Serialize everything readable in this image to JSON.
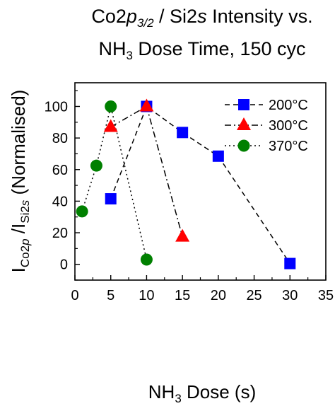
{
  "chart_data": {
    "type": "scatter",
    "title_line1": {
      "prefix": "Co2",
      "italic": "p",
      "sub": "3/2",
      "mid": " / Si2",
      "italic2": "s",
      "suffix": " Intensity vs."
    },
    "title_line2": {
      "prefix": "NH",
      "sub": "3",
      "suffix": " Dose Time, 150 cyc"
    },
    "xlabel": {
      "prefix": "NH",
      "sub": "3",
      "suffix": " Dose (s)"
    },
    "ylabel": {
      "i1": "I",
      "sub1_pre": "Co2",
      "sub1_it": "p",
      "slash": " /I",
      "sub2_pre": "Si2",
      "sub2_it": "s",
      "suffix": " (Normalised)"
    },
    "xlim": [
      0,
      35
    ],
    "ylim": [
      -10,
      115
    ],
    "xticks": [
      "0",
      "5",
      "10",
      "15",
      "20",
      "25",
      "30",
      "35"
    ],
    "yticks": [
      "0",
      "20",
      "40",
      "60",
      "80",
      "100"
    ],
    "legend_position": "top-right",
    "series": [
      {
        "name": "200°C",
        "marker": "square",
        "color": "#0000ff",
        "line": "dashed",
        "x": [
          5,
          10,
          15,
          20,
          30
        ],
        "y": [
          41.5,
          100,
          83.5,
          68.5,
          0.5
        ]
      },
      {
        "name": "300°C",
        "marker": "triangle",
        "color": "#ff0000",
        "line": "dashdot",
        "x": [
          5,
          10,
          15
        ],
        "y": [
          87,
          100,
          17.5
        ]
      },
      {
        "name": "370°C",
        "marker": "circle",
        "color": "#008000",
        "line": "dotted",
        "x": [
          1,
          3,
          5,
          10
        ],
        "y": [
          33.5,
          62.5,
          100,
          3
        ]
      }
    ]
  }
}
